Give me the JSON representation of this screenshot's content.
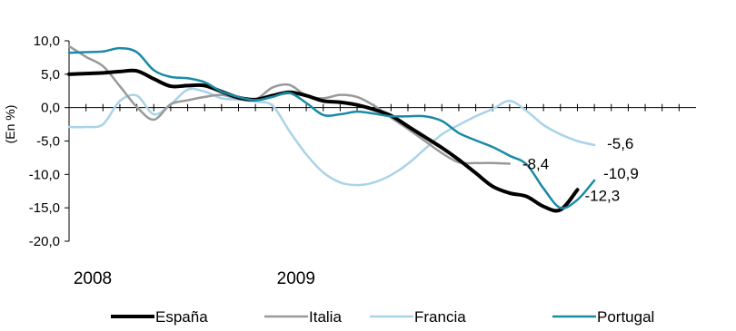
{
  "chart_data": {
    "type": "line",
    "title": "",
    "xlabel": "",
    "ylabel": "(En %)",
    "ylim": [
      -20,
      10
    ],
    "yticks": [
      10,
      5,
      0,
      -5,
      -10,
      -15,
      -20
    ],
    "ytick_labels": [
      "10,0",
      "5,0",
      "0,0",
      "-5,0",
      "-10,0",
      "-15,0",
      "-20,0"
    ],
    "year_labels": [
      "2008",
      "2009"
    ],
    "x": [
      "2008-01",
      "2008-02",
      "2008-03",
      "2008-04",
      "2008-05",
      "2008-06",
      "2008-07",
      "2008-08",
      "2008-09",
      "2008-10",
      "2008-11",
      "2008-12",
      "2009-01",
      "2009-02",
      "2009-03",
      "2009-04",
      "2009-05",
      "2009-06",
      "2009-07",
      "2009-08",
      "2009-09",
      "2009-10",
      "2009-11",
      "2009-12",
      "2010-01",
      "2010-02",
      "2010-03",
      "2010-04",
      "2010-05",
      "2010-06",
      "2010-07",
      "2010-08",
      "2010-09",
      "2010-10",
      "2010-11",
      "2010-12",
      "2011-01",
      "2011-02"
    ],
    "grid": false,
    "legend_position": "bottom",
    "series": [
      {
        "name": "España",
        "color": "#000000",
        "values": [
          5.0,
          5.1,
          5.2,
          5.4,
          5.5,
          4.3,
          3.2,
          3.3,
          3.3,
          2.4,
          1.5,
          1.2,
          1.8,
          2.3,
          1.8,
          1.0,
          0.8,
          0.4,
          -0.3,
          -1.2,
          -2.8,
          -4.4,
          -6.0,
          -7.8,
          -9.8,
          -11.8,
          -12.8,
          -13.3,
          -14.8,
          -15.3,
          -12.3,
          null,
          null,
          null,
          null,
          null,
          null,
          null
        ],
        "end_label": "-12,3"
      },
      {
        "name": "Italia",
        "color": "#999999",
        "values": [
          9.2,
          7.6,
          6.2,
          3.2,
          0.1,
          -1.8,
          0.5,
          1.1,
          1.6,
          1.9,
          1.3,
          1.2,
          3.0,
          3.4,
          1.8,
          1.4,
          1.9,
          1.6,
          0.3,
          -1.5,
          -3.2,
          -5.0,
          -6.8,
          -8.2,
          -8.3,
          -8.3,
          -8.4,
          null,
          null,
          null,
          null,
          null,
          null,
          null,
          null,
          null,
          null,
          null
        ],
        "end_label": "-8,4"
      },
      {
        "name": "Francia",
        "color": "#a9d3e8",
        "values": [
          -2.9,
          -2.9,
          -2.5,
          1.0,
          1.8,
          -1.0,
          0.5,
          2.7,
          2.4,
          1.4,
          1.2,
          0.9,
          0.3,
          -3.5,
          -7.0,
          -9.7,
          -11.2,
          -11.6,
          -11.2,
          -10.1,
          -8.4,
          -6.2,
          -4.0,
          -2.6,
          -1.3,
          -0.2,
          1.0,
          -0.5,
          -2.6,
          -4.0,
          -5.0,
          -5.6,
          null,
          null,
          null,
          null,
          null,
          null
        ],
        "end_label": "-5,6"
      },
      {
        "name": "Portugal",
        "color": "#1a8aa6",
        "values": [
          8.2,
          8.3,
          8.4,
          8.9,
          8.3,
          5.6,
          4.6,
          4.4,
          3.8,
          2.4,
          1.6,
          1.1,
          1.6,
          2.2,
          0.7,
          -1.1,
          -1.0,
          -0.6,
          -0.9,
          -1.3,
          -1.3,
          -1.3,
          -2.0,
          -3.8,
          -4.9,
          -5.9,
          -7.2,
          -8.5,
          -12.1,
          -15.0,
          -13.8,
          -10.9,
          null,
          null,
          null,
          null,
          null,
          null
        ],
        "end_label": "-10,9"
      }
    ]
  }
}
